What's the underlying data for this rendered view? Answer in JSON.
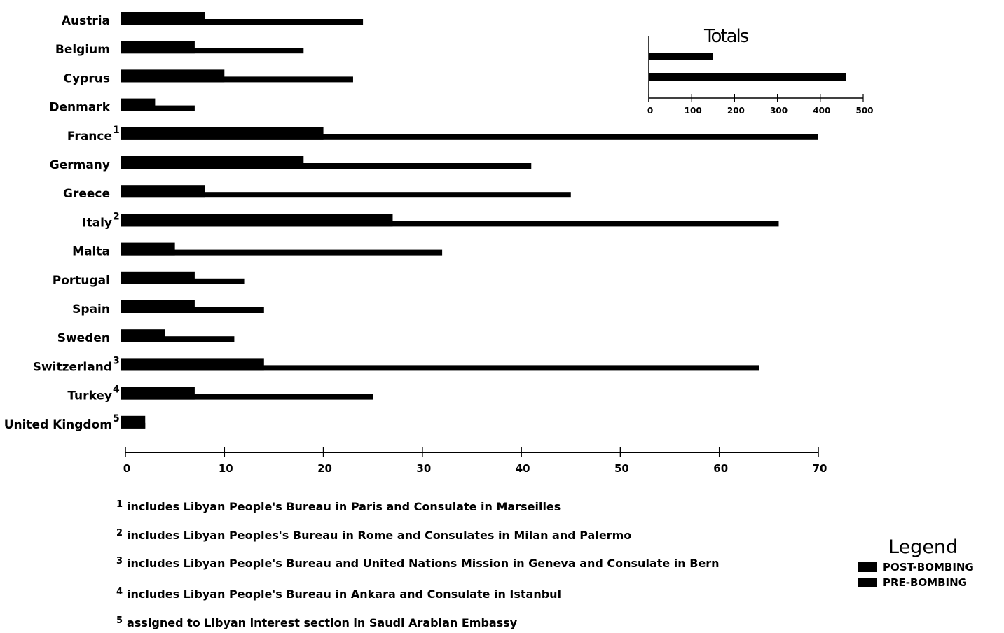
{
  "chart_data": [
    {
      "type": "bar",
      "orientation": "horizontal",
      "categories": [
        "Austria",
        "Belgium",
        "Cyprus",
        "Denmark",
        "France",
        "Germany",
        "Greece",
        "Italy",
        "Malta",
        "Portugal",
        "Spain",
        "Sweden",
        "Switzerland",
        "Turkey",
        "United Kingdom"
      ],
      "footnote_marks": [
        "",
        "",
        "",
        "",
        "1",
        "",
        "",
        "2",
        "",
        "",
        "",
        "",
        "3",
        "4",
        "5"
      ],
      "series": [
        {
          "name": "PRE-BOMBING",
          "values": [
            24,
            18,
            23,
            7,
            70,
            41,
            45,
            66,
            32,
            12,
            14,
            11,
            64,
            25,
            2
          ]
        },
        {
          "name": "POST-BOMBING",
          "values": [
            8,
            7,
            10,
            3,
            20,
            18,
            8,
            27,
            5,
            7,
            7,
            4,
            14,
            7,
            2
          ]
        }
      ],
      "xticks": [
        "0",
        "10",
        "20",
        "30",
        "40",
        "50",
        "60",
        "70"
      ],
      "xlim": [
        0,
        70
      ],
      "grid": false
    },
    {
      "type": "bar",
      "orientation": "horizontal",
      "title": "Totals",
      "series": [
        {
          "name": "POST-BOMBING",
          "values": [
            150
          ]
        },
        {
          "name": "PRE-BOMBING",
          "values": [
            460
          ]
        }
      ],
      "xticks": [
        "0",
        "100",
        "200",
        "300",
        "400",
        "500"
      ],
      "xlim": [
        0,
        500
      ],
      "grid": false
    }
  ],
  "footnotes": [
    {
      "mark": "1",
      "text": "includes Libyan People's Bureau in Paris and Consulate in Marseilles"
    },
    {
      "mark": "2",
      "text": "includes Libyan Peoples's Bureau in Rome and Consulates in Milan and Palermo"
    },
    {
      "mark": "3",
      "text": "includes Libyan People's Bureau and United Nations Mission in Geneva and Consulate in Bern"
    },
    {
      "mark": "4",
      "text": "includes Libyan People's Bureau in Ankara and Consulate in Istanbul"
    },
    {
      "mark": "5",
      "text": "assigned to Libyan interest section in Saudi Arabian Embassy"
    }
  ],
  "legend": {
    "title": "Legend",
    "items": [
      {
        "label": "POST-BOMBING",
        "color": "#000000"
      },
      {
        "label": "PRE-BOMBING",
        "color": "#000000"
      }
    ]
  }
}
